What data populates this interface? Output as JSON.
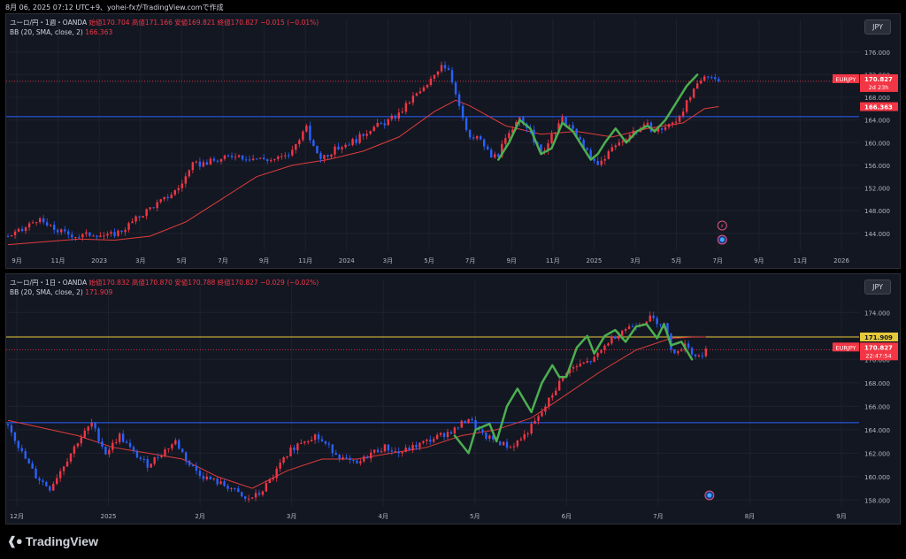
{
  "header": {
    "text": "8月 06, 2025 07:12 UTC+9、yohei-fxがTradingView.comで作成"
  },
  "colors": {
    "bg": "#131722",
    "up": "#f23645",
    "down": "#2962ff",
    "bb": "#e03c3c",
    "wave": "#4caf50",
    "grid": "#1e222d"
  },
  "panels": [
    {
      "legend_title": "ユーロ/円・1週・OANDA",
      "ohlc": "始値170.704 高値171.166 安値169.821 終値170.827 −0.015 (−0.01%)",
      "bb_label": "BB (20, SMA, close, 2)",
      "bb_value": "166.363",
      "currency": "JPY",
      "price_tag": {
        "symbol": "EURJPY",
        "price": "170.827",
        "countdown": "2d 23h"
      },
      "bb_tag": "166.363",
      "chart_data": {
        "type": "candlestick",
        "timeframe": "weekly",
        "ylim": [
          141,
          178
        ],
        "y_ticks": [
          "176.000",
          "172.000",
          "168.000",
          "164.000",
          "160.000",
          "156.000",
          "152.000",
          "148.000",
          "144.000"
        ],
        "x_ticks": [
          "9月",
          "11月",
          "2023",
          "3月",
          "5月",
          "7月",
          "9月",
          "11月",
          "2024",
          "3月",
          "5月",
          "7月",
          "9月",
          "11月",
          "2025",
          "3月",
          "5月",
          "7月",
          "9月",
          "11月",
          "2026"
        ],
        "hline_blue": 164.6,
        "price_line": 170.827,
        "close_path": [
          [
            0,
            143.5
          ],
          [
            4,
            144.5
          ],
          [
            8,
            146.5
          ],
          [
            12,
            145
          ],
          [
            16,
            144
          ],
          [
            20,
            143.5
          ],
          [
            24,
            144
          ],
          [
            28,
            143.5
          ],
          [
            32,
            144.5
          ],
          [
            36,
            146.5
          ],
          [
            40,
            148.5
          ],
          [
            44,
            150
          ],
          [
            48,
            152
          ],
          [
            52,
            156
          ],
          [
            56,
            156.5
          ],
          [
            60,
            157
          ],
          [
            64,
            158
          ],
          [
            66,
            157.5
          ],
          [
            70,
            157.2
          ],
          [
            74,
            157
          ],
          [
            78,
            157.5
          ],
          [
            80,
            158.5
          ],
          [
            82,
            161
          ],
          [
            84,
            162.5
          ],
          [
            86,
            159
          ],
          [
            88,
            157.5
          ],
          [
            90,
            158
          ],
          [
            94,
            159.5
          ],
          [
            98,
            160.5
          ],
          [
            102,
            162.5
          ],
          [
            106,
            163.5
          ],
          [
            110,
            165
          ],
          [
            114,
            168
          ],
          [
            118,
            170
          ],
          [
            120,
            172
          ],
          [
            122,
            174
          ],
          [
            124,
            173
          ],
          [
            126,
            169
          ],
          [
            128,
            164
          ],
          [
            130,
            160.5
          ],
          [
            132,
            161
          ],
          [
            134,
            159.5
          ],
          [
            136,
            157.5
          ],
          [
            138,
            158
          ],
          [
            140,
            160.5
          ],
          [
            142,
            162
          ],
          [
            144,
            164.5
          ],
          [
            146,
            163
          ],
          [
            148,
            160.5
          ],
          [
            150,
            158
          ],
          [
            152,
            160
          ],
          [
            154,
            162
          ],
          [
            156,
            164
          ],
          [
            158,
            163
          ],
          [
            160,
            161
          ],
          [
            162,
            159.5
          ],
          [
            164,
            157
          ],
          [
            166,
            156
          ],
          [
            168,
            157.5
          ],
          [
            170,
            159
          ],
          [
            172,
            160
          ],
          [
            174,
            161
          ],
          [
            176,
            162
          ],
          [
            178,
            162.5
          ],
          [
            180,
            163
          ],
          [
            182,
            162
          ],
          [
            184,
            162.5
          ],
          [
            186,
            163
          ],
          [
            188,
            164
          ],
          [
            190,
            166
          ],
          [
            192,
            168
          ],
          [
            194,
            170
          ],
          [
            196,
            171.5
          ],
          [
            198,
            172
          ],
          [
            200,
            170.827
          ]
        ],
        "bb_basis": [
          [
            0,
            142
          ],
          [
            20,
            143
          ],
          [
            30,
            142.8
          ],
          [
            40,
            143.5
          ],
          [
            50,
            146
          ],
          [
            60,
            150
          ],
          [
            70,
            154
          ],
          [
            80,
            156
          ],
          [
            90,
            157
          ],
          [
            100,
            158.5
          ],
          [
            110,
            161
          ],
          [
            120,
            165.5
          ],
          [
            126,
            167.5
          ],
          [
            130,
            166.5
          ],
          [
            140,
            163
          ],
          [
            150,
            161.5
          ],
          [
            160,
            162
          ],
          [
            170,
            161
          ],
          [
            180,
            162.5
          ],
          [
            190,
            163.5
          ],
          [
            196,
            166
          ],
          [
            200,
            166.363
          ]
        ],
        "wave_path": [
          [
            138,
            157
          ],
          [
            141,
            160
          ],
          [
            144,
            164
          ],
          [
            147,
            162.5
          ],
          [
            150,
            158
          ],
          [
            153,
            159
          ],
          [
            156,
            163.5
          ],
          [
            159,
            162
          ],
          [
            162,
            159
          ],
          [
            164,
            157
          ],
          [
            166,
            158
          ],
          [
            168,
            160
          ],
          [
            171,
            162.5
          ],
          [
            174,
            160
          ],
          [
            177,
            162
          ],
          [
            180,
            163
          ],
          [
            182,
            162
          ],
          [
            185,
            164
          ],
          [
            188,
            167
          ],
          [
            191,
            170
          ],
          [
            194,
            172
          ]
        ]
      }
    },
    {
      "legend_title": "ユーロ/円・1日・OANDA",
      "ohlc": "始値170.832 高値170.870 安値170.788 終値170.827 −0.029 (−0.02%)",
      "bb_label": "BB (20, SMA, close, 2)",
      "bb_value": "171.909",
      "currency": "JPY",
      "price_tag": {
        "symbol": "EURJPY",
        "price": "170.827",
        "countdown": "22:47:54"
      },
      "bb_tag": "171.909",
      "chart_data": {
        "type": "candlestick",
        "timeframe": "daily",
        "ylim": [
          157.5,
          175
        ],
        "y_ticks": [
          "174.000",
          "172.000",
          "170.000",
          "168.000",
          "166.000",
          "164.000",
          "162.000",
          "160.000",
          "158.000"
        ],
        "x_ticks": [
          "12月",
          "2025",
          "2月",
          "3月",
          "4月",
          "5月",
          "6月",
          "7月",
          "8月",
          "9月"
        ],
        "hline_yellow": 171.909,
        "hline_blue": 164.6,
        "price_line": 170.827,
        "close_path": [
          [
            0,
            164.5
          ],
          [
            4,
            162
          ],
          [
            8,
            160
          ],
          [
            12,
            159
          ],
          [
            16,
            161
          ],
          [
            20,
            163
          ],
          [
            24,
            164.5
          ],
          [
            28,
            162
          ],
          [
            32,
            163.5
          ],
          [
            36,
            162
          ],
          [
            40,
            161
          ],
          [
            44,
            162
          ],
          [
            48,
            163
          ],
          [
            52,
            161
          ],
          [
            56,
            160
          ],
          [
            60,
            159.5
          ],
          [
            64,
            159
          ],
          [
            68,
            158
          ],
          [
            72,
            158.5
          ],
          [
            76,
            160
          ],
          [
            80,
            162
          ],
          [
            84,
            163
          ],
          [
            88,
            163.5
          ],
          [
            92,
            162.5
          ],
          [
            96,
            161.5
          ],
          [
            100,
            161
          ],
          [
            104,
            162
          ],
          [
            108,
            162.5
          ],
          [
            112,
            162
          ],
          [
            116,
            162.5
          ],
          [
            120,
            163
          ],
          [
            124,
            163.5
          ],
          [
            128,
            164
          ],
          [
            132,
            165
          ],
          [
            136,
            163.5
          ],
          [
            140,
            163
          ],
          [
            144,
            162.5
          ],
          [
            148,
            163.5
          ],
          [
            152,
            165
          ],
          [
            156,
            167
          ],
          [
            160,
            169
          ],
          [
            164,
            169.5
          ],
          [
            168,
            170
          ],
          [
            172,
            171.5
          ],
          [
            176,
            172.5
          ],
          [
            180,
            173
          ],
          [
            184,
            173.5
          ],
          [
            188,
            173
          ],
          [
            190,
            171
          ],
          [
            192,
            170.5
          ],
          [
            194,
            171.5
          ],
          [
            196,
            170.5
          ],
          [
            198,
            170.2
          ],
          [
            200,
            170.827
          ]
        ],
        "bb_basis": [
          [
            0,
            164.8
          ],
          [
            20,
            163.5
          ],
          [
            30,
            162.5
          ],
          [
            40,
            162
          ],
          [
            50,
            161.5
          ],
          [
            60,
            160
          ],
          [
            70,
            159
          ],
          [
            80,
            160.5
          ],
          [
            90,
            161.5
          ],
          [
            100,
            161.5
          ],
          [
            110,
            162
          ],
          [
            120,
            162.5
          ],
          [
            130,
            163.5
          ],
          [
            140,
            164
          ],
          [
            150,
            165
          ],
          [
            160,
            167
          ],
          [
            170,
            169
          ],
          [
            180,
            170.8
          ],
          [
            190,
            171.8
          ],
          [
            196,
            171.9
          ],
          [
            200,
            171.909
          ]
        ],
        "wave_path": [
          [
            128,
            163.5
          ],
          [
            132,
            162
          ],
          [
            134,
            164
          ],
          [
            138,
            164.5
          ],
          [
            140,
            163
          ],
          [
            143,
            166
          ],
          [
            146,
            167.5
          ],
          [
            148,
            166.5
          ],
          [
            150,
            165.5
          ],
          [
            153,
            168
          ],
          [
            156,
            169.5
          ],
          [
            158,
            168.5
          ],
          [
            160,
            168.5
          ],
          [
            163,
            171
          ],
          [
            166,
            172
          ],
          [
            168,
            170.5
          ],
          [
            171,
            172
          ],
          [
            174,
            172.5
          ],
          [
            177,
            171.5
          ],
          [
            180,
            172.8
          ],
          [
            183,
            173
          ],
          [
            186,
            171.8
          ],
          [
            188,
            173
          ],
          [
            190,
            171.2
          ],
          [
            193,
            171.5
          ],
          [
            196,
            170
          ]
        ]
      }
    }
  ],
  "footer": {
    "brand": "TradingView",
    "logo": "tradingview-logo"
  }
}
